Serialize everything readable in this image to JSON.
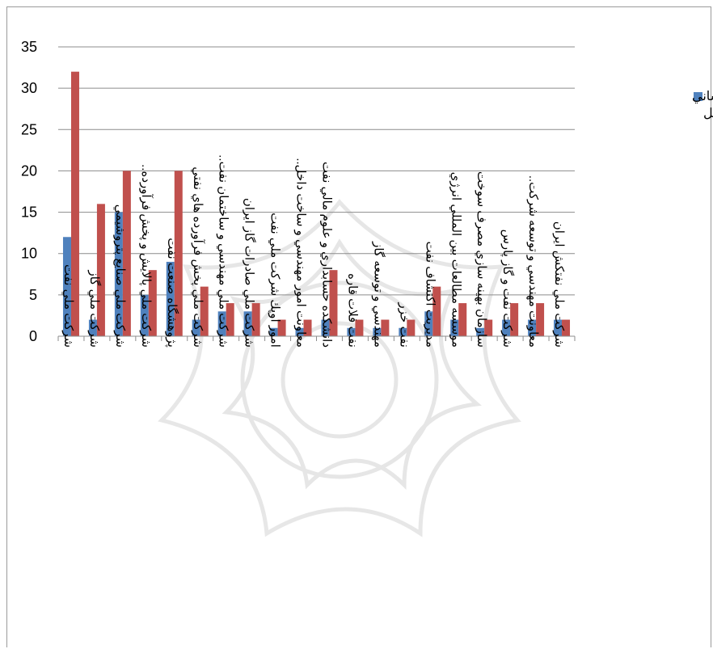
{
  "chart_data": {
    "type": "bar",
    "title": "",
    "xlabel": "",
    "ylabel": "",
    "ylim": [
      0,
      35
    ],
    "yticks": [
      0,
      5,
      10,
      15,
      20,
      25,
      30,
      35
    ],
    "grid": true,
    "legend_position": "right",
    "categories": [
      "شركت ملي نفت",
      "شركت ملي گاز",
      "شركت ملي صنايع پتروشيمي",
      "شركت ملي پالايش و پخش فرآورده..",
      "پژوهشگاه صنعت نفت",
      "شركت ملي پخش فرآورده هاي نفتي",
      "شركت ملي مهندسي و ساختمان نفت..",
      "شركت ملي صادرات گاز ايران",
      "امور اوپك شركت ملي نفت",
      "معاونت امور مهندسي و ساخت داخل..",
      "دانشكده حسابداري و علوم مالي نفت",
      "نفت فلات قاره",
      "مهندسي و توسعه گاز",
      "نفت خزر",
      "مديريت اكتشاف نفت",
      "موسسه مطالعات بين المللي انرژي",
      "سازمان بهينه سازي مصرف سوخت",
      "شركت نفت و گاز پارس",
      "معاونت مهندسي و توسعه شركت..",
      "شركت ملي نفتكش ايران"
    ],
    "series": [
      {
        "name": "تعداد نيروي انساني شاغل",
        "color": "#4f81bd",
        "values": [
          12,
          2,
          15,
          5,
          9,
          2,
          3,
          3,
          1,
          1,
          2,
          1,
          1,
          1,
          3,
          2,
          1,
          2,
          2,
          2
        ]
      },
      {
        "name": "",
        "color": "#c0504d",
        "values": [
          32,
          16,
          20,
          8,
          20,
          6,
          4,
          4,
          2,
          2,
          8,
          2,
          2,
          2,
          6,
          4,
          2,
          4,
          4,
          2
        ]
      }
    ]
  }
}
